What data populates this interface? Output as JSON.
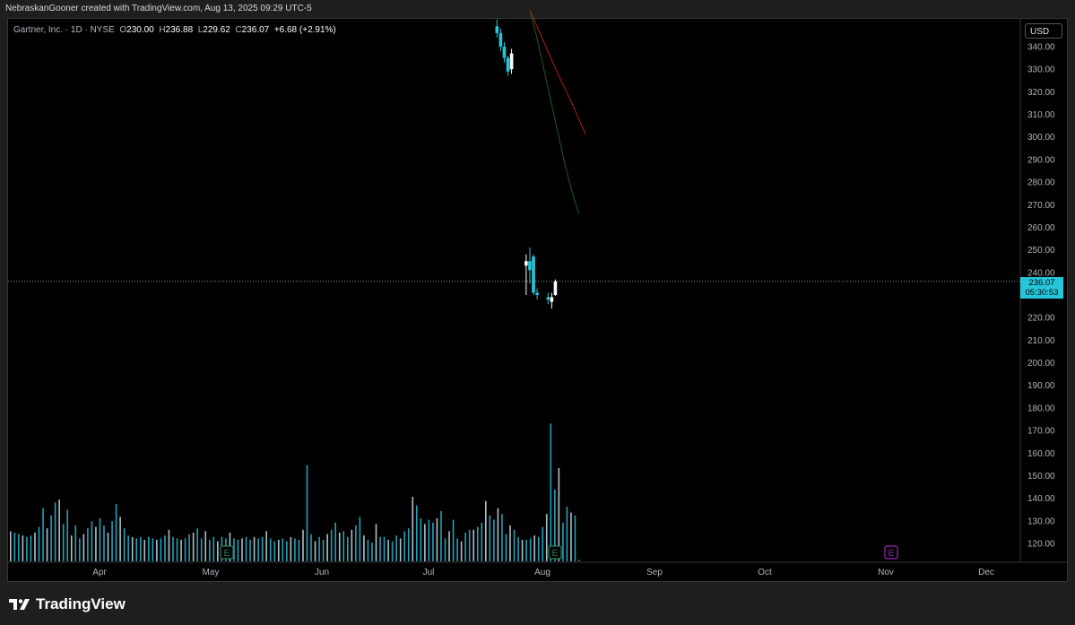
{
  "header": {
    "attribution": "NebraskanGooner created with TradingView.com, Aug 13, 2025 09:29 UTC-5"
  },
  "legend": {
    "symbol": "Gartner, Inc. · 1D · NYSE",
    "open_label": "O",
    "open": "230.00",
    "high_label": "H",
    "high": "236.88",
    "low_label": "L",
    "low": "229.62",
    "close_label": "C",
    "close": "236.07",
    "change": "+6.68 (+2.91%)"
  },
  "currency_button": "USD",
  "last_price": {
    "price": "236.07",
    "countdown": "05:30:53"
  },
  "brand": {
    "name": "TradingView"
  },
  "colors": {
    "up": "#ffffff",
    "down": "#26c6da",
    "ma_fast": "#1b5e20",
    "ma_slow": "#b71c1c",
    "volume": "#26a0b8",
    "earnings_past": "#2e7d5e",
    "earnings_future": "#9c27b0"
  },
  "chart_data": {
    "type": "candlestick",
    "title": "",
    "y_axis": {
      "ticks": [
        120,
        130,
        140,
        150,
        160,
        170,
        180,
        190,
        200,
        210,
        220,
        230,
        240,
        250,
        260,
        270,
        280,
        290,
        300,
        310,
        320,
        330,
        340
      ],
      "range": [
        114,
        354
      ]
    },
    "x_axis": {
      "labels": [
        "Apr",
        "May",
        "Jun",
        "Jul",
        "Aug",
        "Sep",
        "Oct",
        "Nov",
        "Dec"
      ]
    },
    "candles": [
      {
        "date": "2025-07-28",
        "open": 349,
        "high": 352,
        "low": 344,
        "close": 346
      },
      {
        "date": "2025-07-29",
        "open": 346,
        "high": 348,
        "low": 338,
        "close": 340
      },
      {
        "date": "2025-07-30",
        "open": 340,
        "high": 342,
        "low": 333,
        "close": 335
      },
      {
        "date": "2025-07-31",
        "open": 335,
        "high": 336,
        "low": 327,
        "close": 329
      },
      {
        "date": "2025-08-01",
        "open": 330,
        "high": 339,
        "low": 328,
        "close": 337
      },
      {
        "date": "2025-08-05",
        "open": 243,
        "high": 248,
        "low": 230,
        "close": 245
      },
      {
        "date": "2025-08-06",
        "open": 245,
        "high": 251,
        "low": 235,
        "close": 241
      },
      {
        "date": "2025-08-07",
        "open": 247,
        "high": 248,
        "low": 230,
        "close": 231
      },
      {
        "date": "2025-08-08",
        "open": 231,
        "high": 233,
        "low": 228,
        "close": 230
      },
      {
        "date": "2025-08-11",
        "open": 229,
        "high": 231,
        "low": 226,
        "close": 228
      },
      {
        "date": "2025-08-12",
        "open": 227,
        "high": 231,
        "low": 224,
        "close": 229
      },
      {
        "date": "2025-08-13",
        "open": 230.0,
        "high": 236.88,
        "low": 229.62,
        "close": 236.07
      }
    ],
    "ma_fast": [
      [
        0,
        356
      ],
      [
        1,
        344
      ],
      [
        2,
        330
      ],
      [
        3,
        316
      ],
      [
        4,
        302
      ],
      [
        5,
        288
      ],
      [
        6,
        276
      ],
      [
        7,
        266
      ]
    ],
    "ma_slow": [
      [
        0,
        356
      ],
      [
        2,
        342
      ],
      [
        4,
        328
      ],
      [
        6,
        315
      ],
      [
        8,
        301
      ]
    ],
    "volume": [
      21,
      20,
      19,
      18,
      17,
      18,
      20,
      24,
      37,
      23,
      32,
      41,
      43,
      26,
      36,
      18,
      25,
      16,
      19,
      23,
      28,
      24,
      30,
      25,
      20,
      28,
      40,
      31,
      23,
      18,
      17,
      16,
      17,
      15,
      17,
      16,
      15,
      16,
      18,
      22,
      17,
      16,
      15,
      16,
      19,
      20,
      23,
      16,
      21,
      15,
      17,
      14,
      17,
      16,
      20,
      16,
      15,
      16,
      17,
      15,
      17,
      16,
      17,
      21,
      16,
      14,
      15,
      16,
      14,
      17,
      16,
      15,
      22,
      67,
      19,
      14,
      17,
      15,
      19,
      22,
      27,
      20,
      21,
      17,
      22,
      25,
      31,
      18,
      15,
      13,
      26,
      17,
      17,
      15,
      14,
      18,
      16,
      21,
      23,
      45,
      39,
      30,
      26,
      29,
      27,
      30,
      35,
      16,
      21,
      29,
      16,
      14,
      20,
      22,
      22,
      24,
      27,
      42,
      32,
      29,
      37,
      33,
      19,
      25,
      22,
      17,
      15,
      15,
      16,
      18,
      17,
      24,
      33,
      96,
      50,
      65,
      27,
      38,
      34,
      32,
      1,
      0,
      0,
      0
    ],
    "earnings_markers": [
      {
        "month": "May",
        "text": "E",
        "past": true
      },
      {
        "month": "Aug",
        "text": "E",
        "past": true
      },
      {
        "month": "Nov",
        "text": "E",
        "past": false
      }
    ]
  }
}
